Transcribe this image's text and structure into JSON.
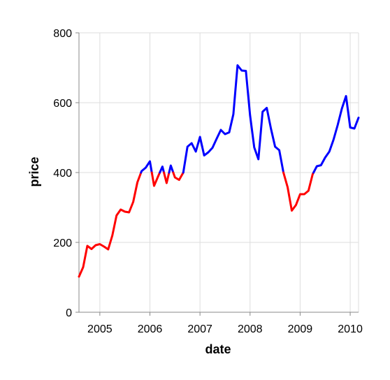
{
  "chart_data": {
    "type": "line",
    "xlabel": "date",
    "ylabel": "price",
    "x_ticks": [
      "2005",
      "2006",
      "2007",
      "2008",
      "2009",
      "2010"
    ],
    "y_ticks": [
      0,
      200,
      400,
      600,
      800
    ],
    "ylim": [
      0,
      800
    ],
    "xlim": [
      "2004-08-01",
      "2010-03-01"
    ],
    "grid": true,
    "threshold": 400,
    "colors": {
      "below_threshold": "#ff0000",
      "above_threshold": "#0000ff",
      "grid": "#dddddd",
      "axis": "#888888"
    },
    "points": [
      [
        "2004-08-01",
        102
      ],
      [
        "2004-09-01",
        129
      ],
      [
        "2004-10-01",
        190
      ],
      [
        "2004-11-01",
        181
      ],
      [
        "2004-12-01",
        192
      ],
      [
        "2005-01-01",
        195
      ],
      [
        "2005-02-01",
        188
      ],
      [
        "2005-03-01",
        180
      ],
      [
        "2005-04-01",
        220
      ],
      [
        "2005-05-01",
        277
      ],
      [
        "2005-06-01",
        294
      ],
      [
        "2005-07-01",
        288
      ],
      [
        "2005-08-01",
        286
      ],
      [
        "2005-09-01",
        316
      ],
      [
        "2005-10-01",
        372
      ],
      [
        "2005-11-01",
        404
      ],
      [
        "2005-12-01",
        414
      ],
      [
        "2006-01-01",
        432
      ],
      [
        "2006-02-01",
        362
      ],
      [
        "2006-03-01",
        390
      ],
      [
        "2006-04-01",
        417
      ],
      [
        "2006-05-01",
        370
      ],
      [
        "2006-06-01",
        420
      ],
      [
        "2006-07-01",
        386
      ],
      [
        "2006-08-01",
        379
      ],
      [
        "2006-09-01",
        400
      ],
      [
        "2006-10-01",
        474
      ],
      [
        "2006-11-01",
        484
      ],
      [
        "2006-12-01",
        460
      ],
      [
        "2007-01-01",
        502
      ],
      [
        "2007-02-01",
        449
      ],
      [
        "2007-03-01",
        458
      ],
      [
        "2007-04-01",
        471
      ],
      [
        "2007-05-01",
        497
      ],
      [
        "2007-06-01",
        522
      ],
      [
        "2007-07-01",
        510
      ],
      [
        "2007-08-01",
        515
      ],
      [
        "2007-09-01",
        567
      ],
      [
        "2007-10-01",
        707
      ],
      [
        "2007-11-01",
        692
      ],
      [
        "2007-12-01",
        691
      ],
      [
        "2008-01-01",
        564
      ],
      [
        "2008-02-01",
        472
      ],
      [
        "2008-03-01",
        438
      ],
      [
        "2008-04-01",
        574
      ],
      [
        "2008-05-01",
        585
      ],
      [
        "2008-06-01",
        526
      ],
      [
        "2008-07-01",
        474
      ],
      [
        "2008-08-01",
        464
      ],
      [
        "2008-09-01",
        400
      ],
      [
        "2008-10-01",
        358
      ],
      [
        "2008-11-01",
        291
      ],
      [
        "2008-12-01",
        307
      ],
      [
        "2009-01-01",
        338
      ],
      [
        "2009-02-01",
        338
      ],
      [
        "2009-03-01",
        348
      ],
      [
        "2009-04-01",
        395
      ],
      [
        "2009-05-01",
        418
      ],
      [
        "2009-06-01",
        421
      ],
      [
        "2009-07-01",
        443
      ],
      [
        "2009-08-01",
        460
      ],
      [
        "2009-09-01",
        494
      ],
      [
        "2009-10-01",
        536
      ],
      [
        "2009-11-01",
        583
      ],
      [
        "2009-12-01",
        619
      ],
      [
        "2010-01-01",
        529
      ],
      [
        "2010-02-01",
        526
      ],
      [
        "2010-03-01",
        557
      ]
    ]
  }
}
